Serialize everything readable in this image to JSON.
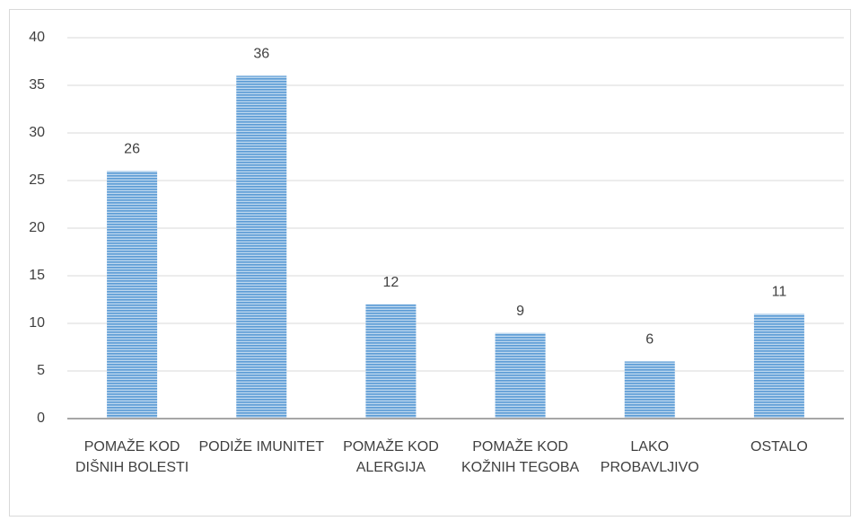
{
  "chart_data": {
    "type": "bar",
    "categories": [
      "POMAŽE KOD DIŠNIH BOLESTI",
      "PODIŽE IMUNITET",
      "POMAŽE KOD ALERGIJA",
      "POMAŽE KOD KOŽNIH TEGOBA",
      "LAKO PROBAVLJIVO",
      "OSTALO"
    ],
    "values": [
      26,
      36,
      12,
      9,
      6,
      11
    ],
    "color": "#5b9bd5",
    "ylim": [
      0,
      40
    ],
    "yticks": [
      0,
      5,
      10,
      15,
      20,
      25,
      30,
      35,
      40
    ],
    "grid": true
  }
}
